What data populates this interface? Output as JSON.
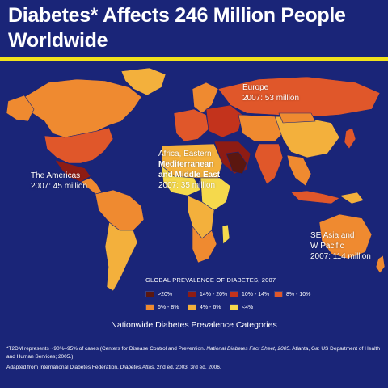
{
  "slide": {
    "title_line1": "Diabetes* Affects 246 Million People",
    "title_line2": "Worldwide"
  },
  "regions": {
    "americas": {
      "name": "The Americas",
      "stat": "2007: 45 million"
    },
    "europe": {
      "name": "Europe",
      "stat": "2007: 53 million"
    },
    "africa_me": {
      "name_line1": "Africa, Eastern",
      "name_line2": "Mediterranean",
      "name_line3": "and Middle East",
      "stat": "2007: 35 million"
    },
    "se_asia": {
      "name_line1": "SE Asia and",
      "name_line2": "W Pacific",
      "stat": "2007: 114 million"
    }
  },
  "legend": {
    "title": "GLOBAL PREVALENCE OF DIABETES, 2007",
    "items": [
      {
        "label": ">20%",
        "color": "#5b1710"
      },
      {
        "label": "14% - 20%",
        "color": "#8e1c14"
      },
      {
        "label": "10% - 14%",
        "color": "#c3331c"
      },
      {
        "label": "8% - 10%",
        "color": "#e0572a"
      },
      {
        "label": "6% - 8%",
        "color": "#ef8a30"
      },
      {
        "label": "4% - 6%",
        "color": "#f3b03c"
      },
      {
        "label": "<4%",
        "color": "#f5d94c"
      }
    ]
  },
  "categories_caption": "Nationwide Diabetes Prevalence Categories",
  "footnote": {
    "line1_a": "*T2DM represents ~90%–95% of cases (Centers for Disease Control and Prevention. ",
    "line1_b": "National Diabetes Fact Sheet, 2005",
    "line1_c": ". Atlanta, Ga: US Department of Health and Human Services; 2005.)",
    "line2_a": "Adapted from International Diabetes Federation. ",
    "line2_b": "Diabetes Atlas",
    "line2_c": ". 2nd ed. 2003; 3rd ed. 2006."
  },
  "colors": {
    "background": "#1a2578",
    "title_rule": "#f2e21c",
    "text": "#ffffff"
  }
}
